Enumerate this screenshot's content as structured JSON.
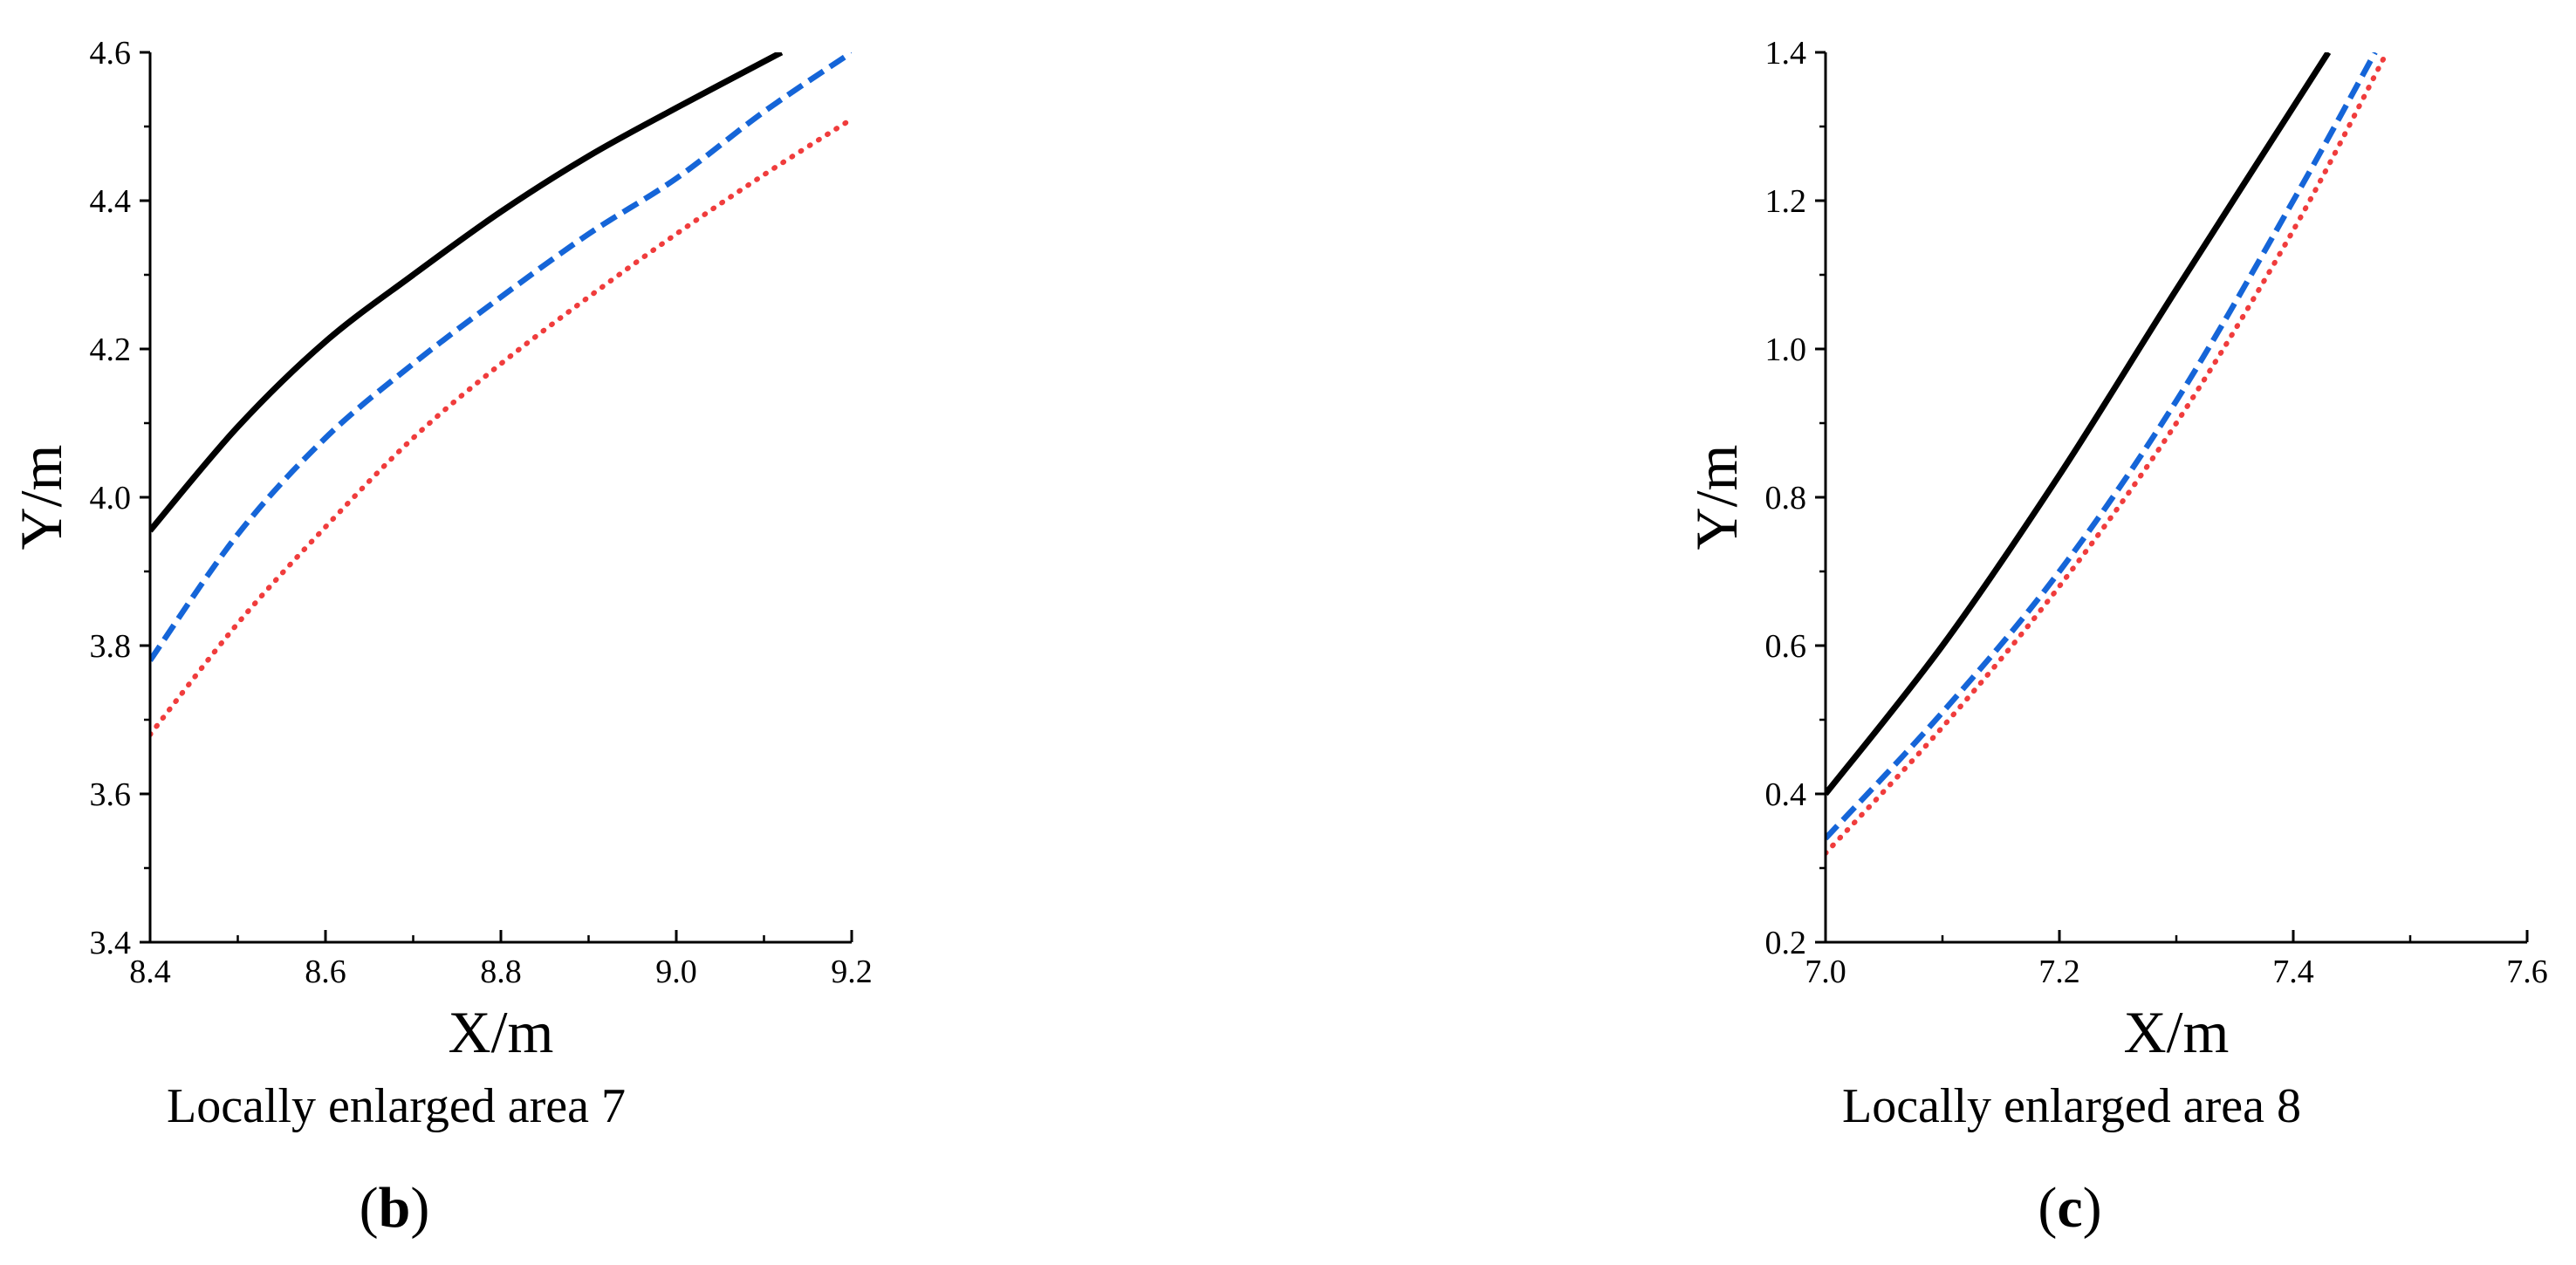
{
  "chart_data": [
    {
      "type": "line",
      "panel": "b",
      "caption": "Locally enlarged area 7",
      "xlabel": "X/m",
      "ylabel": "Y/m",
      "xlim": [
        8.4,
        9.2
      ],
      "ylim": [
        3.4,
        4.6
      ],
      "x_ticks": [
        "8.4",
        "8.6",
        "8.8",
        "9.0",
        "9.2"
      ],
      "y_ticks": [
        "3.4",
        "3.6",
        "3.8",
        "4.0",
        "4.2",
        "4.4",
        "4.6"
      ],
      "series": [
        {
          "style": "solid",
          "color": "#000000",
          "x": [
            8.4,
            8.5,
            8.6,
            8.7,
            8.8,
            8.9,
            9.0,
            9.12
          ],
          "y": [
            3.955,
            4.095,
            4.21,
            4.3,
            4.385,
            4.46,
            4.525,
            4.6
          ]
        },
        {
          "style": "dashed",
          "color": "#1565d8",
          "x": [
            8.4,
            8.5,
            8.6,
            8.7,
            8.8,
            8.9,
            9.0,
            9.1,
            9.2
          ],
          "y": [
            3.78,
            3.95,
            4.08,
            4.18,
            4.27,
            4.355,
            4.43,
            4.52,
            4.6
          ]
        },
        {
          "style": "dotted",
          "color": "#f03c3c",
          "x": [
            8.4,
            8.5,
            8.6,
            8.7,
            8.8,
            8.9,
            9.0,
            9.1,
            9.2
          ],
          "y": [
            3.68,
            3.83,
            3.96,
            4.08,
            4.18,
            4.27,
            4.355,
            4.435,
            4.51
          ]
        }
      ]
    },
    {
      "type": "line",
      "panel": "c",
      "caption": "Locally enlarged area 8",
      "xlabel": "X/m",
      "ylabel": "Y/m",
      "xlim": [
        7.0,
        7.6
      ],
      "ylim": [
        0.2,
        1.4
      ],
      "x_ticks": [
        "7.0",
        "7.2",
        "7.4",
        "7.6"
      ],
      "y_ticks": [
        "0.2",
        "0.4",
        "0.6",
        "0.8",
        "1.0",
        "1.2",
        "1.4"
      ],
      "series": [
        {
          "style": "solid",
          "color": "#000000",
          "x": [
            7.0,
            7.1,
            7.2,
            7.3,
            7.43
          ],
          "y": [
            0.4,
            0.6,
            0.83,
            1.08,
            1.4
          ]
        },
        {
          "style": "dashed",
          "color": "#1565d8",
          "x": [
            7.0,
            7.1,
            7.2,
            7.3,
            7.4,
            7.47
          ],
          "y": [
            0.34,
            0.51,
            0.7,
            0.93,
            1.2,
            1.4
          ]
        },
        {
          "style": "dotted",
          "color": "#f03c3c",
          "x": [
            7.0,
            7.1,
            7.2,
            7.3,
            7.4,
            7.48
          ],
          "y": [
            0.32,
            0.49,
            0.68,
            0.9,
            1.16,
            1.4
          ]
        }
      ]
    }
  ]
}
